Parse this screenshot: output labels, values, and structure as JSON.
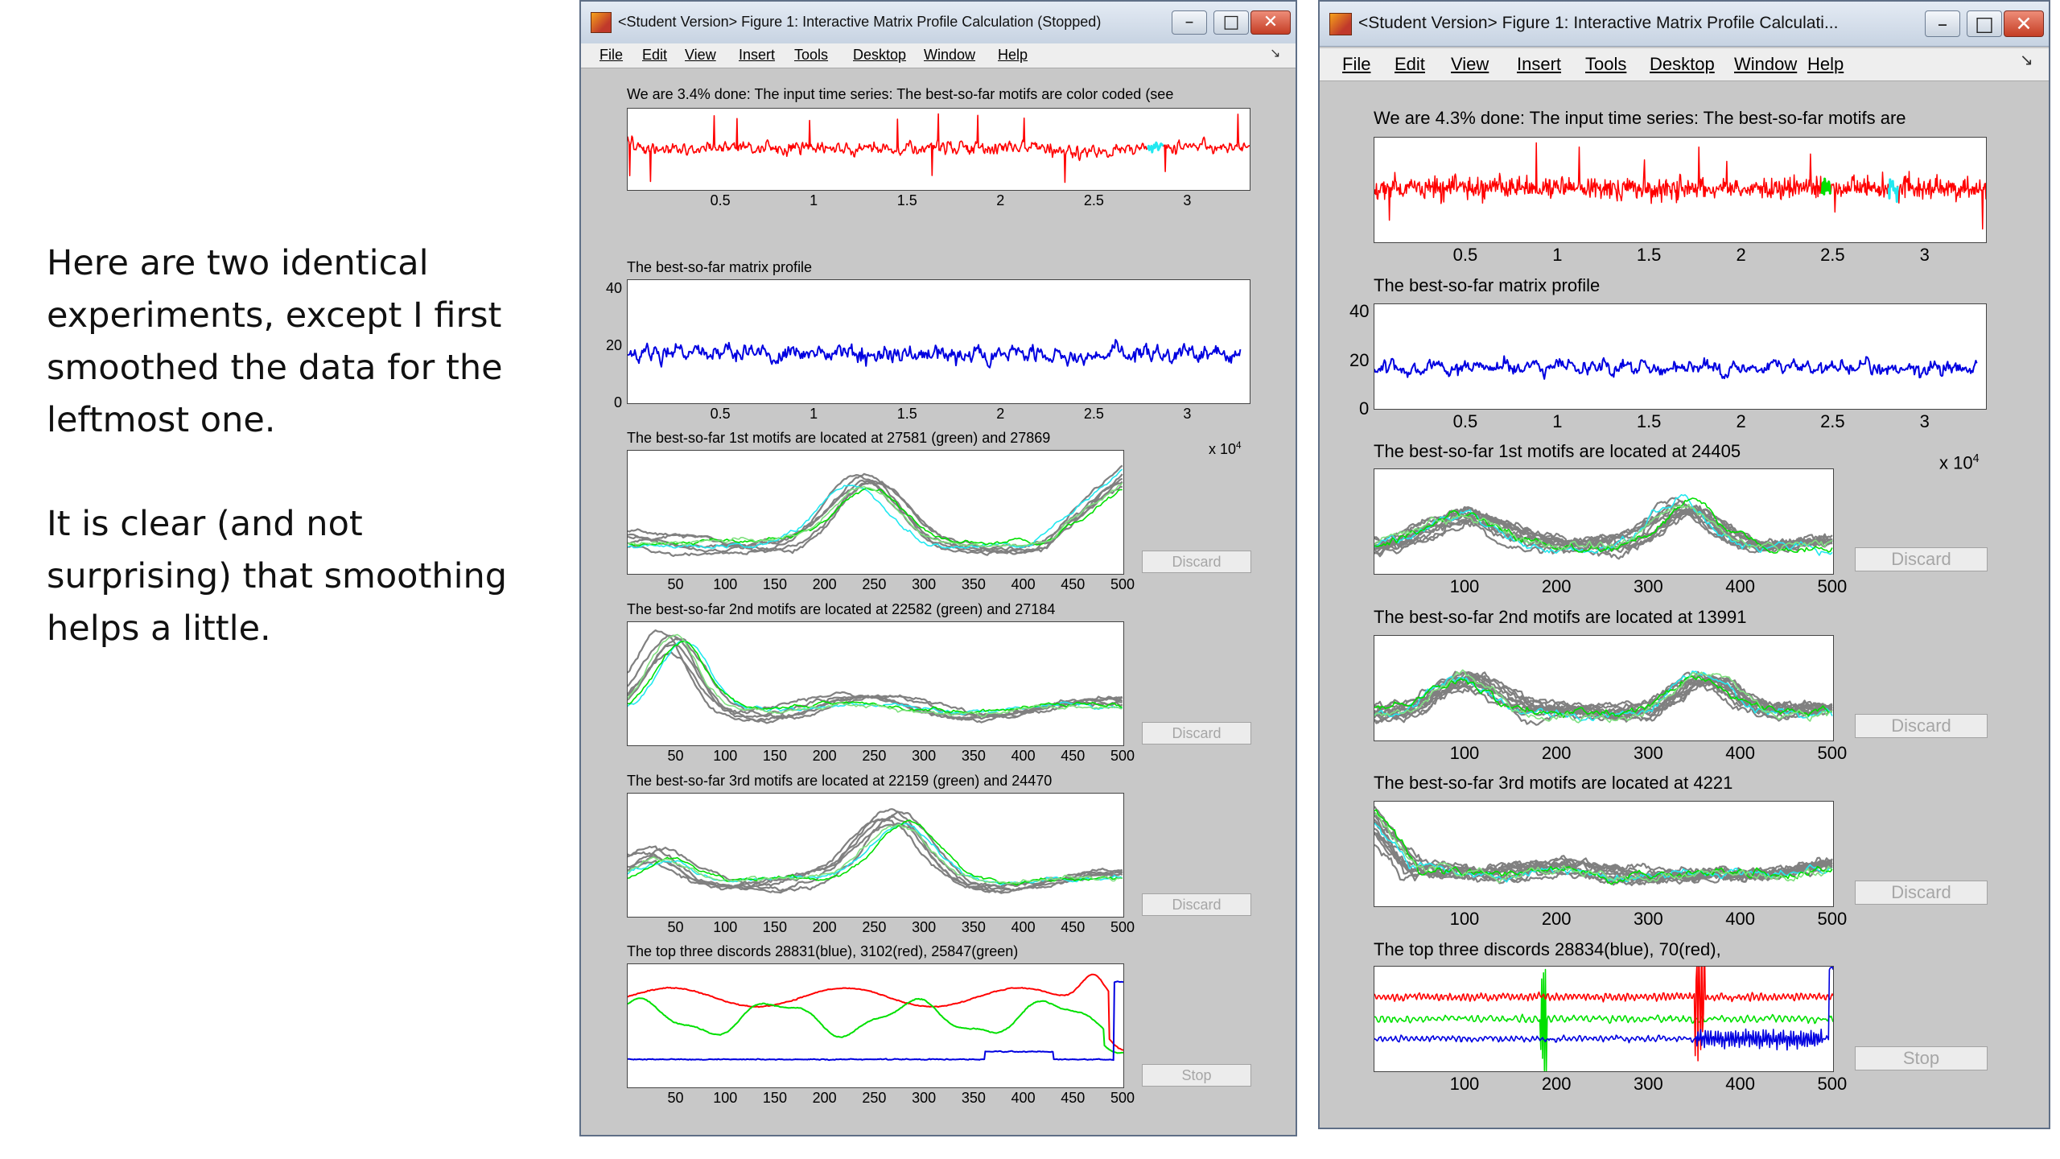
{
  "slide": {
    "paragraph1": "Here are two identical experiments, except I first smoothed the data for the leftmost one.",
    "paragraph2": "It is clear (and not surprising) that smoothing helps a little."
  },
  "windows": [
    {
      "title": "<Student Version> Figure 1: Interactive Matrix Profile Calculation (Stopped)",
      "menu": [
        "File",
        "Edit",
        "View",
        "Insert",
        "Tools",
        "Desktop",
        "Window",
        "Help"
      ],
      "menu_arrow": "↘",
      "exponent_label": "x 10",
      "exponent_power": "4",
      "panels": {
        "series_title": "We are 3.4% done: The input time series: The best-so-far motifs are color coded (see",
        "profile_title": "The best-so-far matrix profile",
        "motif1_title": "The best-so-far 1st motifs are located at 27581 (green) and 27869",
        "motif2_title": "The best-so-far 2nd motifs are located at 22582 (green) and 27184",
        "motif3_title": "The best-so-far 3rd motifs are located at 22159 (green) and 24470",
        "discord_title": "The top three discords 28831(blue), 3102(red), 25847(green)"
      },
      "buttons": [
        "Discard",
        "Discard",
        "Discard",
        "Stop"
      ]
    },
    {
      "title": "<Student Version> Figure 1: Interactive Matrix Profile Calculati...",
      "menu": [
        "File",
        "Edit",
        "View",
        "Insert",
        "Tools",
        "Desktop",
        "Window",
        "Help"
      ],
      "menu_arrow": "↘",
      "exponent_label": "x 10",
      "exponent_power": "4",
      "panels": {
        "series_title": "We are 4.3% done: The input time series: The best-so-far motifs are",
        "profile_title": "The best-so-far matrix profile",
        "motif1_title": "The best-so-far 1st motifs are located at 24405",
        "motif2_title": "The best-so-far 2nd motifs are located at 13991",
        "motif3_title": "The best-so-far 3rd motifs are located at 4221",
        "discord_title": "The top three discords 28834(blue), 70(red),"
      },
      "buttons": [
        "Discard",
        "Discard",
        "Discard",
        "Stop"
      ]
    }
  ],
  "chart_data": [
    {
      "type": "line",
      "title": "We are 3.4% done: The input time series: The best-so-far motifs are color coded (see",
      "x_ticks": [
        "0.5",
        "1",
        "1.5",
        "2",
        "2.5",
        "3"
      ],
      "xlim": [
        0,
        3.33
      ],
      "x_exponent": "x 10^4",
      "series_colors": [
        "#ff0000",
        "#00e000",
        "#22e8f0"
      ]
    },
    {
      "type": "line",
      "title": "The best-so-far matrix profile",
      "x_ticks": [
        "0.5",
        "1",
        "1.5",
        "2",
        "2.5",
        "3"
      ],
      "y_ticks": [
        "0",
        "20",
        "40"
      ],
      "ylim": [
        0,
        43
      ],
      "series_colors": [
        "#0000e0"
      ]
    },
    {
      "type": "line",
      "title": "The best-so-far 1st motifs are located at 27581 (green) and 27869",
      "x_ticks": [
        "50",
        "100",
        "150",
        "200",
        "250",
        "300",
        "350",
        "400",
        "450",
        "500"
      ],
      "xlim": [
        1,
        500
      ]
    },
    {
      "type": "line",
      "title": "The best-so-far 2nd motifs are located at 22582 (green) and 27184",
      "x_ticks": [
        "50",
        "100",
        "150",
        "200",
        "250",
        "300",
        "350",
        "400",
        "450",
        "500"
      ],
      "xlim": [
        1,
        500
      ]
    },
    {
      "type": "line",
      "title": "The best-so-far 3rd motifs are located at 22159 (green) and 24470",
      "x_ticks": [
        "50",
        "100",
        "150",
        "200",
        "250",
        "300",
        "350",
        "400",
        "450",
        "500"
      ],
      "xlim": [
        1,
        500
      ]
    },
    {
      "type": "line",
      "title": "The top three discords 28831(blue), 3102(red), 25847(green)",
      "x_ticks": [
        "50",
        "100",
        "150",
        "200",
        "250",
        "300",
        "350",
        "400",
        "450",
        "500"
      ],
      "xlim": [
        1,
        500
      ],
      "series_colors": [
        "#0000e0",
        "#ff0000",
        "#00e000"
      ]
    },
    {
      "type": "line",
      "title": "We are 4.3% done: The input time series: The best-so-far motifs are",
      "x_ticks": [
        "0.5",
        "1",
        "1.5",
        "2",
        "2.5",
        "3"
      ],
      "xlim": [
        0,
        3.33
      ],
      "x_exponent": "x 10^4"
    },
    {
      "type": "line",
      "title": "The best-so-far matrix profile",
      "x_ticks": [
        "0.5",
        "1",
        "1.5",
        "2",
        "2.5",
        "3"
      ],
      "y_ticks": [
        "0",
        "20",
        "40"
      ],
      "ylim": [
        0,
        43
      ]
    },
    {
      "type": "line",
      "title": "The best-so-far 1st motifs are located at 24405",
      "x_ticks": [
        "100",
        "200",
        "300",
        "400",
        "500"
      ],
      "xlim": [
        1,
        500
      ]
    },
    {
      "type": "line",
      "title": "The best-so-far 2nd motifs are located at 13991",
      "x_ticks": [
        "100",
        "200",
        "300",
        "400",
        "500"
      ],
      "xlim": [
        1,
        500
      ]
    },
    {
      "type": "line",
      "title": "The best-so-far 3rd motifs are located at 4221",
      "x_ticks": [
        "100",
        "200",
        "300",
        "400",
        "500"
      ],
      "xlim": [
        1,
        500
      ]
    },
    {
      "type": "line",
      "title": "The top three discords 28834(blue), 70(red),",
      "x_ticks": [
        "100",
        "200",
        "300",
        "400",
        "500"
      ],
      "xlim": [
        1,
        500
      ]
    }
  ]
}
